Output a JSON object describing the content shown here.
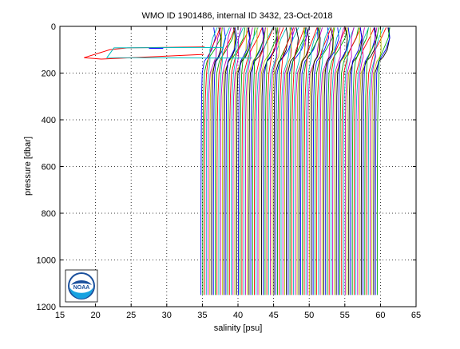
{
  "chart_data": {
    "type": "line",
    "title": "WMO ID 1901486, internal ID 3432, 23-Oct-2018",
    "xlabel": "salinity [psu]",
    "ylabel": "pressure [dbar]",
    "xlim": [
      15,
      65
    ],
    "ylim": [
      0,
      1200
    ],
    "y_reversed": true,
    "grid": true,
    "xticks": [
      "15",
      "20",
      "25",
      "30",
      "35",
      "40",
      "45",
      "50",
      "55",
      "60",
      "65"
    ],
    "yticks": [
      "0",
      "200",
      "400",
      "600",
      "800",
      "1000",
      "1200"
    ],
    "profiles": {
      "count": 100,
      "first_deep_salinity": 34.8,
      "offset_per_profile": 0.25,
      "pressure_levels": [
        5,
        50,
        100,
        130,
        150,
        200,
        300,
        400,
        600,
        800,
        1000,
        1150
      ],
      "colors": [
        "#0000ff",
        "#00aa00",
        "#ff0000",
        "#00bfbf",
        "#bf00bf",
        "#bfbf00",
        "#000000"
      ]
    },
    "outliers": [
      {
        "color": "#ff0000",
        "x": [
          35.3,
          24.5,
          22.0,
          18.4,
          20.8,
          35.2
        ],
        "y": [
          88,
          92,
          100,
          134,
          140,
          120
        ]
      },
      {
        "color": "#00bfbf",
        "x": [
          38.0,
          22.6,
          21.6,
          42.0
        ],
        "y": [
          90,
          92,
          134,
          136
        ]
      },
      {
        "color": "#0000ff",
        "x": [
          27.5,
          29.5
        ],
        "y": [
          94,
          94
        ]
      }
    ]
  },
  "logo": {
    "name": "noaa-logo",
    "text": "NOAA"
  }
}
